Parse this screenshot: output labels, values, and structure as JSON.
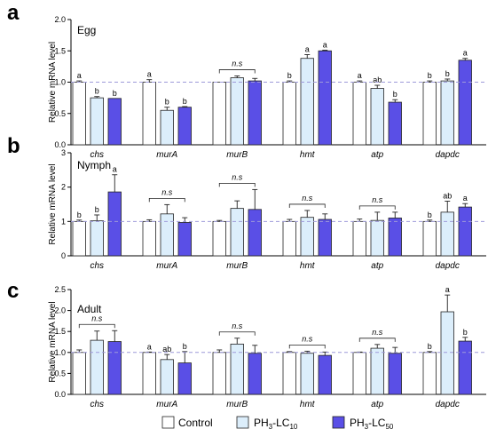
{
  "legend": [
    {
      "name": "Control",
      "color": "#ffffff"
    },
    {
      "name_base": "PH",
      "name_sub": "3",
      "name_mid": "-LC",
      "name_sub2": "10",
      "name": "PH3-LC10",
      "color": "#dceefb"
    },
    {
      "name_base": "PH",
      "name_sub": "3",
      "name_mid": "-LC",
      "name_sub2": "50",
      "name": "PH3-LC50",
      "color": "#5a4fe6"
    }
  ],
  "chart_data": [
    {
      "type": "bar",
      "panel": "a",
      "stage": "Egg",
      "ylabel": "Relative mRNA level",
      "ylim": [
        0,
        2.0
      ],
      "yticks": [
        "0.0",
        "0.5",
        "1.0",
        "1.5",
        "2.0"
      ],
      "ytick_values": [
        0,
        0.5,
        1.0,
        1.5,
        2.0
      ],
      "reference_line": 1.0,
      "categories": [
        "chs",
        "murA",
        "murB",
        "hmt",
        "atp",
        "dapdc"
      ],
      "series": [
        {
          "name": "Control",
          "values": [
            1.0,
            1.0,
            1.0,
            1.0,
            1.0,
            1.0
          ],
          "errors": [
            0.02,
            0.04,
            0.0,
            0.02,
            0.02,
            0.02
          ]
        },
        {
          "name": "PH3-LC10",
          "values": [
            0.75,
            0.55,
            1.07,
            1.38,
            0.9,
            1.02
          ],
          "errors": [
            0.02,
            0.05,
            0.03,
            0.06,
            0.05,
            0.03
          ]
        },
        {
          "name": "PH3-LC50",
          "values": [
            0.74,
            0.6,
            1.02,
            1.5,
            0.68,
            1.35
          ],
          "errors": [
            0.0,
            0.01,
            0.04,
            0.01,
            0.04,
            0.03
          ]
        }
      ],
      "significance": [
        [
          "a",
          "b",
          "b"
        ],
        [
          "a",
          "b",
          "b"
        ],
        null,
        [
          "b",
          "a",
          "a"
        ],
        [
          "a",
          "ab",
          "b"
        ],
        [
          "b",
          "b",
          "a"
        ]
      ],
      "ns_groups": [
        2
      ],
      "ns_text": "n.s"
    },
    {
      "type": "bar",
      "panel": "b",
      "stage": "Nymph",
      "ylabel": "Relative mRNA level",
      "ylim": [
        0,
        3
      ],
      "yticks": [
        "0",
        "1",
        "2",
        "3"
      ],
      "ytick_values": [
        0,
        1,
        2,
        3
      ],
      "reference_line": 1.0,
      "categories": [
        "chs",
        "murA",
        "murB",
        "hmt",
        "atp",
        "dapdc"
      ],
      "series": [
        {
          "name": "Control",
          "values": [
            1.0,
            1.0,
            1.0,
            1.0,
            1.0,
            1.0
          ],
          "errors": [
            0.04,
            0.05,
            0.03,
            0.06,
            0.07,
            0.04
          ]
        },
        {
          "name": "PH3-LC10",
          "values": [
            1.02,
            1.22,
            1.38,
            1.12,
            1.03,
            1.27
          ],
          "errors": [
            0.17,
            0.27,
            0.22,
            0.2,
            0.24,
            0.32
          ]
        },
        {
          "name": "PH3-LC50",
          "values": [
            1.86,
            0.97,
            1.35,
            1.06,
            1.1,
            1.42
          ],
          "errors": [
            0.5,
            0.14,
            0.58,
            0.16,
            0.17,
            0.1
          ]
        }
      ],
      "significance": [
        [
          "b",
          "b",
          "a"
        ],
        null,
        null,
        null,
        null,
        [
          "b",
          "ab",
          "a"
        ]
      ],
      "ns_groups": [
        1,
        2,
        3,
        4
      ],
      "ns_text": "n.s"
    },
    {
      "type": "bar",
      "panel": "c",
      "stage": "Adult",
      "ylabel": "Relative mRNA level",
      "ylim": [
        0,
        2.5
      ],
      "yticks": [
        "0.0",
        "0.5",
        "1.0",
        "1.5",
        "2.0",
        "2.5"
      ],
      "ytick_values": [
        0,
        0.5,
        1.0,
        1.5,
        2.0,
        2.5
      ],
      "reference_line": 1.0,
      "categories": [
        "chs",
        "murA",
        "murB",
        "hmt",
        "atp",
        "dapdc"
      ],
      "series": [
        {
          "name": "Control",
          "values": [
            1.0,
            1.0,
            1.0,
            1.0,
            1.0,
            1.0
          ],
          "errors": [
            0.06,
            0.01,
            0.06,
            0.02,
            0.01,
            0.02
          ]
        },
        {
          "name": "PH3-LC10",
          "values": [
            1.29,
            0.83,
            1.2,
            0.98,
            1.1,
            1.97
          ],
          "errors": [
            0.22,
            0.12,
            0.14,
            0.05,
            0.09,
            0.4
          ]
        },
        {
          "name": "PH3-LC50",
          "values": [
            1.26,
            0.75,
            0.98,
            0.93,
            0.98,
            1.27
          ],
          "errors": [
            0.26,
            0.27,
            0.19,
            0.08,
            0.14,
            0.09
          ]
        }
      ],
      "significance": [
        null,
        [
          "a",
          "ab",
          "b"
        ],
        null,
        null,
        null,
        [
          "b",
          "a",
          "b"
        ]
      ],
      "ns_groups": [
        0,
        2,
        3,
        4
      ],
      "ns_text": "n.s"
    }
  ]
}
